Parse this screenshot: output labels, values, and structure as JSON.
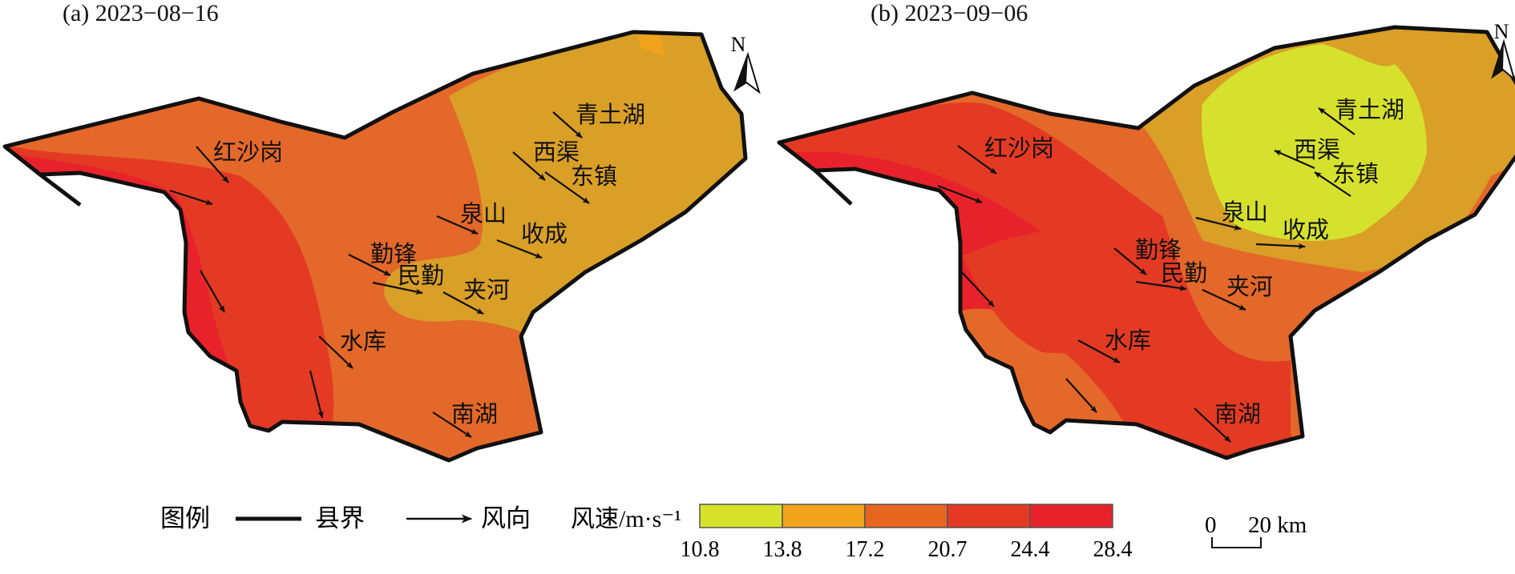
{
  "panels": [
    {
      "title": "(a) 2023−08−16",
      "places": [
        "青土湖",
        "西渠",
        "东镇",
        "泉山",
        "收成",
        "勤锋",
        "民勤",
        "夹河",
        "红沙岗",
        "水库",
        "南湖"
      ]
    },
    {
      "title": "(b) 2023−09−06",
      "places": [
        "青土湖",
        "西渠",
        "东镇",
        "泉山",
        "收成",
        "勤锋",
        "民勤",
        "夹河",
        "红沙岗",
        "水库",
        "南湖"
      ]
    }
  ],
  "north_label": "N",
  "legend": {
    "title": "图例",
    "boundary_label": "县界",
    "wind_direction_label": "风向",
    "wind_speed_label": "风速/m·s⁻¹",
    "class_breaks": [
      "10.8",
      "13.8",
      "17.2",
      "20.7",
      "24.4",
      "28.4"
    ],
    "class_colors": [
      "#d7e22b",
      "#f2a31c",
      "#e7661f",
      "#e43a24",
      "#e8222a"
    ]
  },
  "scale_bar": {
    "zero": "0",
    "distance": "20 km"
  }
}
